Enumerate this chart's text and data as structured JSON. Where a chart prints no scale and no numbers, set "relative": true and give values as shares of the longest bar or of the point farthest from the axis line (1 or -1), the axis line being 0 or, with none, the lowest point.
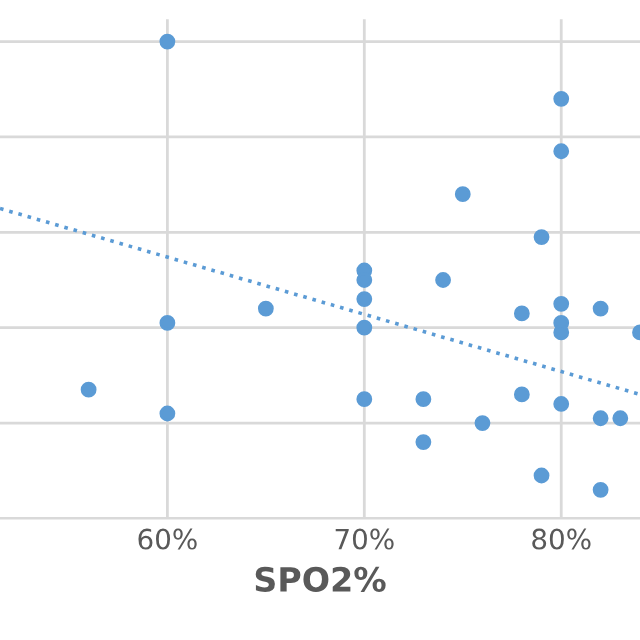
{
  "chart_data": {
    "type": "scatter",
    "xlabel": "SPO2%",
    "relative": true,
    "grid": true,
    "xlim": [
      51.5,
      84
    ],
    "xticks": [
      {
        "value": 60,
        "label": "60%"
      },
      {
        "value": 70,
        "label": "70%"
      },
      {
        "value": 80,
        "label": "80%"
      }
    ],
    "tick_labels": "x",
    "series": [
      {
        "color": "#5b9bd5",
        "marker": "circle",
        "x": [
          60,
          56,
          60,
          60,
          65,
          70,
          70,
          70,
          70,
          70,
          73,
          73,
          74,
          75,
          76,
          78,
          78,
          79,
          79,
          80,
          80,
          80,
          80,
          80,
          80,
          82,
          82,
          83,
          82,
          84
        ],
        "values": [
          1.0,
          0.27,
          0.41,
          0.22,
          0.44,
          0.52,
          0.5,
          0.46,
          0.4,
          0.25,
          0.25,
          0.16,
          0.5,
          0.68,
          0.2,
          0.43,
          0.26,
          0.59,
          0.09,
          0.88,
          0.77,
          0.45,
          0.41,
          0.39,
          0.24,
          0.44,
          0.21,
          0.21,
          0.06,
          0.39
        ]
      },
      {
        "type": "line",
        "color": "#5b9bd5",
        "line_style": "dotted",
        "marker": "none",
        "x": [
          51.5,
          84
        ],
        "values": [
          0.65,
          0.26
        ]
      }
    ]
  }
}
